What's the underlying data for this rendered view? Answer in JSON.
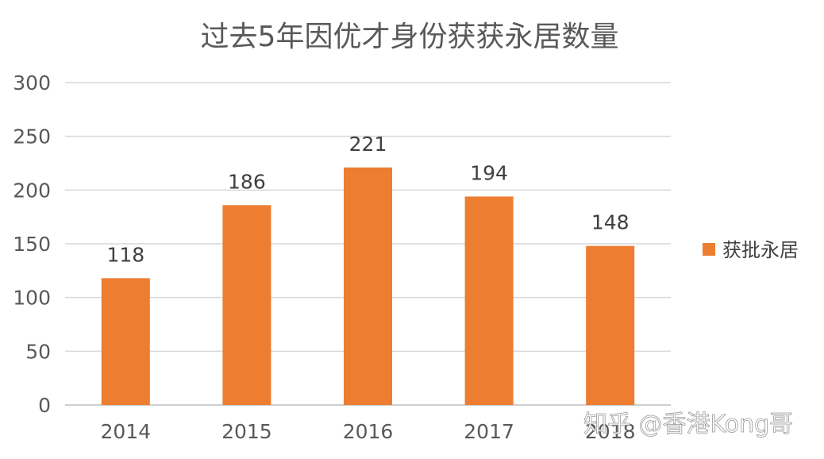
{
  "chart_data": {
    "type": "bar",
    "title": "过去5年因优才身份获获永居数量",
    "categories": [
      "2014",
      "2015",
      "2016",
      "2017",
      "2018"
    ],
    "series": [
      {
        "name": "获批永居",
        "values": [
          118,
          186,
          221,
          194,
          148
        ],
        "color": "#ED7D31"
      }
    ],
    "data_labels": [
      "118",
      "186",
      "221",
      "194",
      "148"
    ],
    "ylim": [
      0,
      300
    ],
    "yticks": [
      0,
      50,
      100,
      150,
      200,
      250,
      300
    ],
    "xlabel": "",
    "ylabel": "",
    "grid": true,
    "gridline_color": "#D9D9D9",
    "legend_position": "right"
  },
  "watermark": {
    "text": "知乎 @香港Kong哥"
  }
}
